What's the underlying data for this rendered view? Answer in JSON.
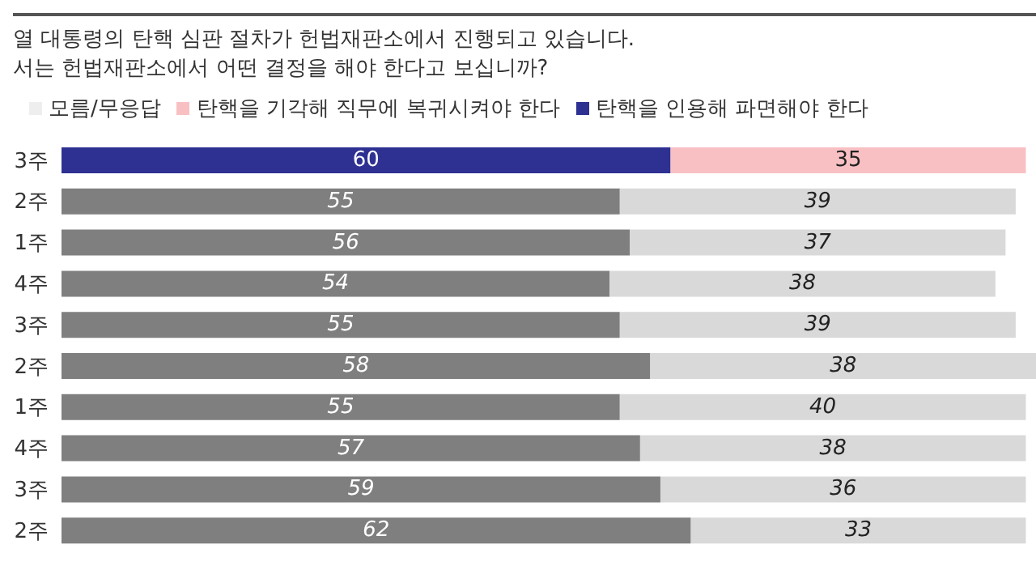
{
  "chart_data": {
    "type": "bar",
    "orientation": "horizontal",
    "stacked": true,
    "data_labels": true,
    "legend": "top left",
    "title": "열 대통령의 탄핵 심판 절차가 헌법재판소에서 진행되고 있습니다.",
    "subtitle": "서는 헌법재판소에서 어떤 결정을 해야 한다고 보십니까?",
    "categories": [
      "3주",
      "2주",
      "1주",
      "4주",
      "3주",
      "2주",
      "1주",
      "4주",
      "3주",
      "2주"
    ],
    "series": [
      {
        "name": "탄핵을 인용해 파면해야 한다",
        "color": "#2e3192",
        "colors": [
          "#2e3192",
          "#7f7f7f",
          "#7f7f7f",
          "#7f7f7f",
          "#7f7f7f",
          "#7f7f7f",
          "#7f7f7f",
          "#7f7f7f",
          "#7f7f7f",
          "#7f7f7f"
        ],
        "values": [
          60,
          55,
          56,
          54,
          55,
          58,
          55,
          57,
          59,
          62
        ]
      },
      {
        "name": "탄핵을 기각해 직무에 복귀시켜야 한다",
        "color": "#f9c0c4",
        "colors": [
          "#f9c0c4",
          "#d9d9d9",
          "#d9d9d9",
          "#d9d9d9",
          "#d9d9d9",
          "#d9d9d9",
          "#d9d9d9",
          "#d9d9d9",
          "#d9d9d9",
          "#d9d9d9"
        ],
        "values": [
          35,
          39,
          37,
          38,
          39,
          38,
          40,
          38,
          36,
          33
        ]
      },
      {
        "name": "모름/무응답",
        "color": "#eeeeee",
        "values": [
          null,
          null,
          null,
          null,
          null,
          null,
          null,
          null,
          null,
          null
        ]
      }
    ]
  }
}
